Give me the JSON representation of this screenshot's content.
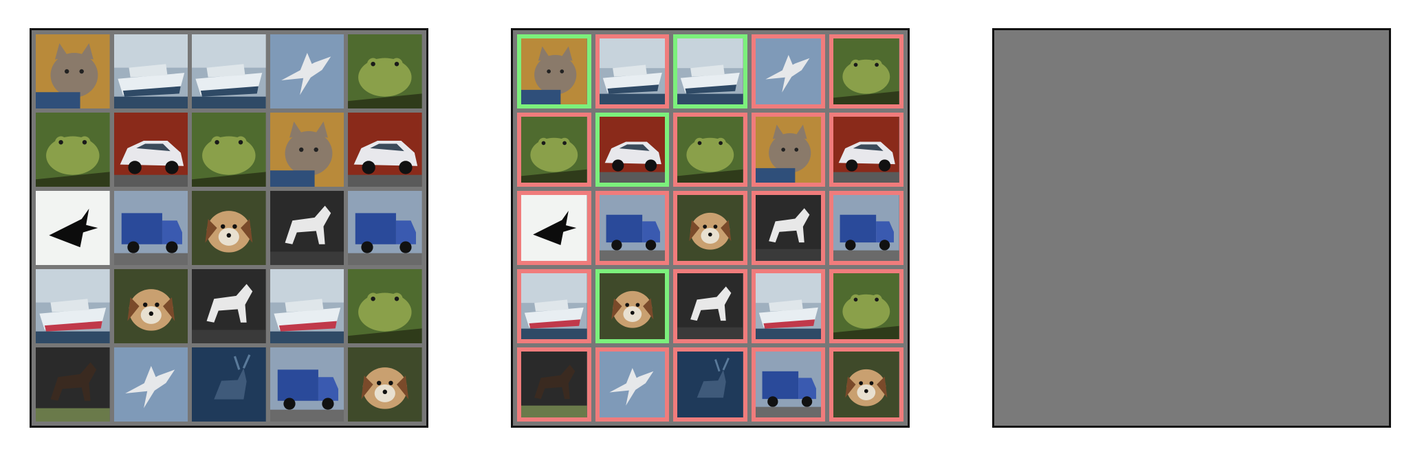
{
  "colors": {
    "panel_background": "#777777",
    "frame": "#111111",
    "correct_border": "#7cf07c",
    "incorrect_border": "#f07c7c",
    "blank_panel": "#7a7a7a"
  },
  "panels": [
    {
      "id": "original",
      "kind": "image-grid"
    },
    {
      "id": "predicted",
      "kind": "image-grid-with-correctness-borders"
    },
    {
      "id": "blank",
      "kind": "empty-gray"
    }
  ],
  "grid": {
    "rows": 5,
    "cols": 5
  },
  "tiles": [
    {
      "subject": "cat",
      "correct": true
    },
    {
      "subject": "ship",
      "correct": false
    },
    {
      "subject": "ship",
      "correct": true
    },
    {
      "subject": "airplane",
      "correct": false
    },
    {
      "subject": "frog",
      "correct": false
    },
    {
      "subject": "frog",
      "correct": false
    },
    {
      "subject": "automobile",
      "correct": true
    },
    {
      "subject": "frog",
      "correct": false
    },
    {
      "subject": "cat",
      "correct": false
    },
    {
      "subject": "automobile",
      "correct": false
    },
    {
      "subject": "airplane",
      "correct": false
    },
    {
      "subject": "truck",
      "correct": false
    },
    {
      "subject": "dog",
      "correct": false
    },
    {
      "subject": "horse",
      "correct": false
    },
    {
      "subject": "truck",
      "correct": false
    },
    {
      "subject": "ship",
      "correct": false
    },
    {
      "subject": "dog",
      "correct": true
    },
    {
      "subject": "horse",
      "correct": false
    },
    {
      "subject": "ship",
      "correct": false
    },
    {
      "subject": "frog",
      "correct": false
    },
    {
      "subject": "horse",
      "correct": false
    },
    {
      "subject": "airplane",
      "correct": false
    },
    {
      "subject": "deer",
      "correct": false
    },
    {
      "subject": "truck",
      "correct": false
    },
    {
      "subject": "dog",
      "correct": false
    }
  ]
}
